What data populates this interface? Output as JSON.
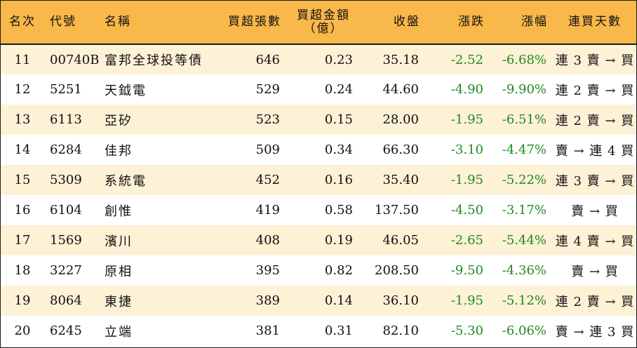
{
  "headers": {
    "rank": "名次",
    "code": "代號",
    "name": "名稱",
    "buy_shares": "買超張數",
    "buy_amount_line1": "買超金額",
    "buy_amount_line2": "（億）",
    "close": "收盤",
    "change": "漲跌",
    "change_pct": "漲幅",
    "streak": "連買天數"
  },
  "rows": [
    {
      "rank": "11",
      "code": "00740B",
      "name": "富邦全球投等債",
      "buy_shares": "646",
      "buy_amount": "0.23",
      "close": "35.18",
      "change": "-2.52",
      "change_pct": "-6.68%",
      "streak": "連 3 賣 → 買"
    },
    {
      "rank": "12",
      "code": "5251",
      "name": "天鉞電",
      "buy_shares": "529",
      "buy_amount": "0.24",
      "close": "44.60",
      "change": "-4.90",
      "change_pct": "-9.90%",
      "streak": "連 2 賣 → 買"
    },
    {
      "rank": "13",
      "code": "6113",
      "name": "亞矽",
      "buy_shares": "523",
      "buy_amount": "0.15",
      "close": "28.00",
      "change": "-1.95",
      "change_pct": "-6.51%",
      "streak": "連 2 賣 → 買"
    },
    {
      "rank": "14",
      "code": "6284",
      "name": "佳邦",
      "buy_shares": "509",
      "buy_amount": "0.34",
      "close": "66.30",
      "change": "-3.10",
      "change_pct": "-4.47%",
      "streak": "賣 → 連 4 買"
    },
    {
      "rank": "15",
      "code": "5309",
      "name": "系統電",
      "buy_shares": "452",
      "buy_amount": "0.16",
      "close": "35.40",
      "change": "-1.95",
      "change_pct": "-5.22%",
      "streak": "連 3 賣 → 買"
    },
    {
      "rank": "16",
      "code": "6104",
      "name": "創惟",
      "buy_shares": "419",
      "buy_amount": "0.58",
      "close": "137.50",
      "change": "-4.50",
      "change_pct": "-3.17%",
      "streak": "賣 → 買"
    },
    {
      "rank": "17",
      "code": "1569",
      "name": "濱川",
      "buy_shares": "408",
      "buy_amount": "0.19",
      "close": "46.05",
      "change": "-2.65",
      "change_pct": "-5.44%",
      "streak": "連 4 賣 → 買"
    },
    {
      "rank": "18",
      "code": "3227",
      "name": "原相",
      "buy_shares": "395",
      "buy_amount": "0.82",
      "close": "208.50",
      "change": "-9.50",
      "change_pct": "-4.36%",
      "streak": "賣 → 買"
    },
    {
      "rank": "19",
      "code": "8064",
      "name": "東捷",
      "buy_shares": "389",
      "buy_amount": "0.14",
      "close": "36.10",
      "change": "-1.95",
      "change_pct": "-5.12%",
      "streak": "連 2 賣 → 買"
    },
    {
      "rank": "20",
      "code": "6245",
      "name": "立端",
      "buy_shares": "381",
      "buy_amount": "0.31",
      "close": "82.10",
      "change": "-5.30",
      "change_pct": "-6.06%",
      "streak": "賣 → 連 3 買"
    }
  ],
  "colors": {
    "header_bg": "#F9B84A",
    "row_alt_bg": "#FDF1D6",
    "negative": "#1E8A1E"
  }
}
